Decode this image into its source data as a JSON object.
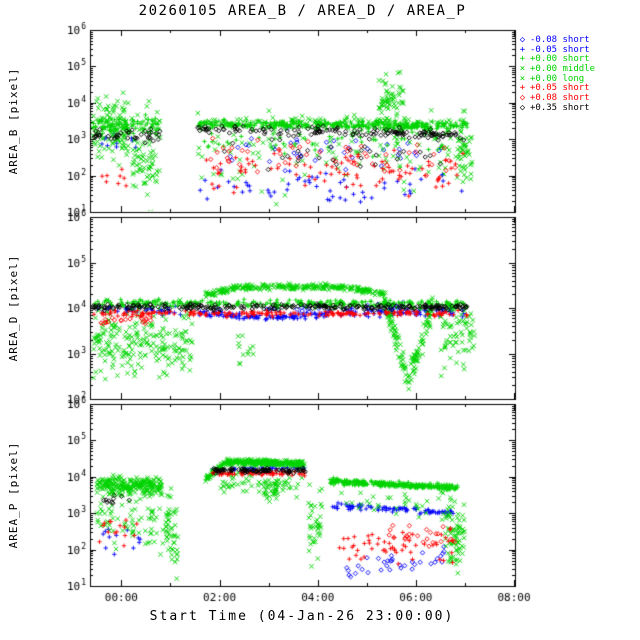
{
  "chart_data": {
    "type": "scatter",
    "title": "20260105 AREA_B / AREA_D / AREA_P",
    "xlabel": "Start Time (04-Jan-26 23:00:00)",
    "yscale": "log",
    "x_axis": {
      "hour_range": [
        -0.64,
        8.02
      ],
      "major_ticks_hours": [
        0,
        2,
        4,
        6,
        8
      ],
      "tick_labels": [
        "00:00",
        "02:00",
        "04:00",
        "06:00",
        "08:00"
      ]
    },
    "colors": {
      "blue": "#0000ff",
      "green": "#00d400",
      "red": "#ff0000",
      "black": "#000000"
    },
    "series": [
      {
        "id": "b1",
        "label": "-0.08 short",
        "marker": "diamond",
        "color": "blue"
      },
      {
        "id": "b2",
        "label": "-0.05 short",
        "marker": "plus",
        "color": "blue"
      },
      {
        "id": "g1",
        "label": "+0.00 short",
        "marker": "plus",
        "color": "green"
      },
      {
        "id": "g2",
        "label": "+0.00 middle",
        "marker": "cross",
        "color": "green"
      },
      {
        "id": "g3",
        "label": "+0.00 long",
        "marker": "cross",
        "color": "green"
      },
      {
        "id": "r1",
        "label": "+0.05 short",
        "marker": "plus",
        "color": "red"
      },
      {
        "id": "r2",
        "label": "+0.08 short",
        "marker": "diamond",
        "color": "red"
      },
      {
        "id": "k1",
        "label": "+0.35 short",
        "marker": "diamond",
        "color": "black"
      }
    ],
    "panels": [
      {
        "ylabel": "AREA_B [pixel]",
        "log_range": [
          1,
          6
        ],
        "segments": [
          [
            "g2",
            -0.58,
            0.15,
            3.3,
            3.3,
            0.45,
            120
          ],
          [
            "g2",
            0.2,
            0.8,
            2.6,
            2.6,
            0.6,
            80
          ],
          [
            "g2",
            1.55,
            7.0,
            2.6,
            2.6,
            0.55,
            120
          ],
          [
            "g2",
            5.25,
            5.75,
            4.1,
            4.1,
            0.3,
            60
          ],
          [
            "g2",
            6.85,
            7.15,
            2.6,
            2.6,
            0.55,
            40
          ],
          [
            "g1",
            -0.58,
            0.8,
            3.35,
            3.35,
            0.12,
            80
          ],
          [
            "g1",
            1.55,
            7.05,
            3.42,
            3.36,
            0.06,
            380
          ],
          [
            "g1",
            1.6,
            7.0,
            3.0,
            3.0,
            0.2,
            60
          ],
          [
            "g3",
            1.7,
            6.8,
            3.52,
            3.45,
            0.05,
            80
          ],
          [
            "k1",
            -0.58,
            0.8,
            3.1,
            3.1,
            0.08,
            40
          ],
          [
            "k1",
            1.55,
            7.05,
            3.28,
            3.12,
            0.07,
            150
          ],
          [
            "k1",
            2.0,
            6.5,
            2.6,
            2.6,
            0.2,
            30
          ],
          [
            "r1",
            -0.45,
            0.1,
            1.95,
            1.95,
            0.12,
            8
          ],
          [
            "r1",
            1.6,
            7.0,
            2.1,
            2.1,
            0.25,
            90
          ],
          [
            "r2",
            1.8,
            6.9,
            2.45,
            2.45,
            0.22,
            55
          ],
          [
            "b2",
            -0.4,
            0.3,
            2.9,
            2.9,
            0.15,
            10
          ],
          [
            "b2",
            1.6,
            7.0,
            1.7,
            1.7,
            0.22,
            55
          ],
          [
            "b1",
            1.9,
            6.6,
            2.7,
            2.7,
            0.25,
            40
          ]
        ]
      },
      {
        "ylabel": "AREA_D [pixel]",
        "log_range": [
          2,
          6
        ],
        "segments": [
          [
            "g2",
            -0.58,
            1.45,
            3.2,
            3.2,
            0.4,
            220
          ],
          [
            "g1",
            -0.58,
            7.05,
            4.1,
            4.08,
            0.04,
            300
          ],
          [
            "g2",
            1.7,
            2.4,
            4.3,
            4.45,
            0.03,
            60
          ],
          [
            "g2",
            2.4,
            4.6,
            4.46,
            4.46,
            0.03,
            160
          ],
          [
            "g2",
            4.6,
            5.35,
            4.45,
            4.3,
            0.03,
            60
          ],
          [
            "g3",
            5.35,
            5.85,
            4.2,
            2.4,
            0.15,
            70
          ],
          [
            "g3",
            5.85,
            6.35,
            2.4,
            4.1,
            0.15,
            70
          ],
          [
            "g2",
            6.5,
            7.2,
            3.4,
            3.4,
            0.4,
            70
          ],
          [
            "g2",
            2.35,
            2.75,
            3.0,
            3.0,
            0.2,
            12
          ],
          [
            "k1",
            -0.58,
            7.05,
            4.02,
            4.02,
            0.03,
            260
          ],
          [
            "r1",
            -0.58,
            7.05,
            3.88,
            3.88,
            0.03,
            200
          ],
          [
            "r2",
            -0.45,
            0.6,
            3.75,
            3.75,
            0.06,
            20
          ],
          [
            "b2",
            -0.5,
            1.4,
            3.95,
            3.95,
            0.05,
            40
          ],
          [
            "b2",
            1.55,
            3.0,
            3.9,
            3.78,
            0.03,
            60
          ],
          [
            "b2",
            3.0,
            4.2,
            3.78,
            3.86,
            0.03,
            50
          ],
          [
            "b2",
            4.2,
            7.0,
            3.9,
            3.9,
            0.04,
            90
          ],
          [
            "b1",
            1.8,
            6.8,
            4.0,
            4.0,
            0.05,
            30
          ]
        ]
      },
      {
        "ylabel": "AREA_P [pixel]",
        "log_range": [
          1,
          6
        ],
        "segments": [
          [
            "g2",
            -0.5,
            0.85,
            3.75,
            3.75,
            0.12,
            240
          ],
          [
            "g2",
            -0.5,
            0.85,
            2.8,
            2.8,
            0.35,
            70
          ],
          [
            "g2",
            0.9,
            1.15,
            2.4,
            2.4,
            0.5,
            50
          ],
          [
            "k1",
            -0.45,
            0.2,
            3.35,
            3.35,
            0.08,
            10
          ],
          [
            "r1",
            -0.45,
            0.4,
            2.6,
            2.6,
            0.25,
            15
          ],
          [
            "b2",
            -0.4,
            0.4,
            2.2,
            2.2,
            0.25,
            12
          ],
          [
            "g2",
            1.7,
            2.1,
            3.9,
            4.38,
            0.04,
            60
          ],
          [
            "g2",
            2.1,
            3.75,
            4.42,
            4.36,
            0.04,
            280
          ],
          [
            "g2",
            1.9,
            3.7,
            3.85,
            3.85,
            0.18,
            60
          ],
          [
            "g2",
            2.9,
            3.2,
            3.7,
            3.7,
            0.15,
            30
          ],
          [
            "k1",
            1.85,
            3.75,
            4.17,
            4.17,
            0.03,
            90
          ],
          [
            "r1",
            1.85,
            3.75,
            4.1,
            4.1,
            0.03,
            70
          ],
          [
            "b2",
            1.85,
            3.75,
            4.22,
            4.22,
            0.03,
            40
          ],
          [
            "g2",
            3.8,
            4.1,
            2.8,
            2.8,
            0.45,
            40
          ],
          [
            "g1",
            4.25,
            6.85,
            3.88,
            3.7,
            0.04,
            280
          ],
          [
            "g2",
            4.4,
            6.8,
            3.3,
            3.2,
            0.18,
            40
          ],
          [
            "b2",
            4.3,
            6.8,
            3.2,
            3.0,
            0.04,
            90
          ],
          [
            "r1",
            4.4,
            6.8,
            2.1,
            2.1,
            0.22,
            55
          ],
          [
            "b1",
            4.4,
            6.6,
            1.3,
            1.9,
            0.13,
            35
          ],
          [
            "r2",
            5.4,
            6.8,
            2.4,
            2.4,
            0.16,
            25
          ],
          [
            "g2",
            6.6,
            7.0,
            2.4,
            2.4,
            0.5,
            70
          ]
        ]
      }
    ]
  }
}
